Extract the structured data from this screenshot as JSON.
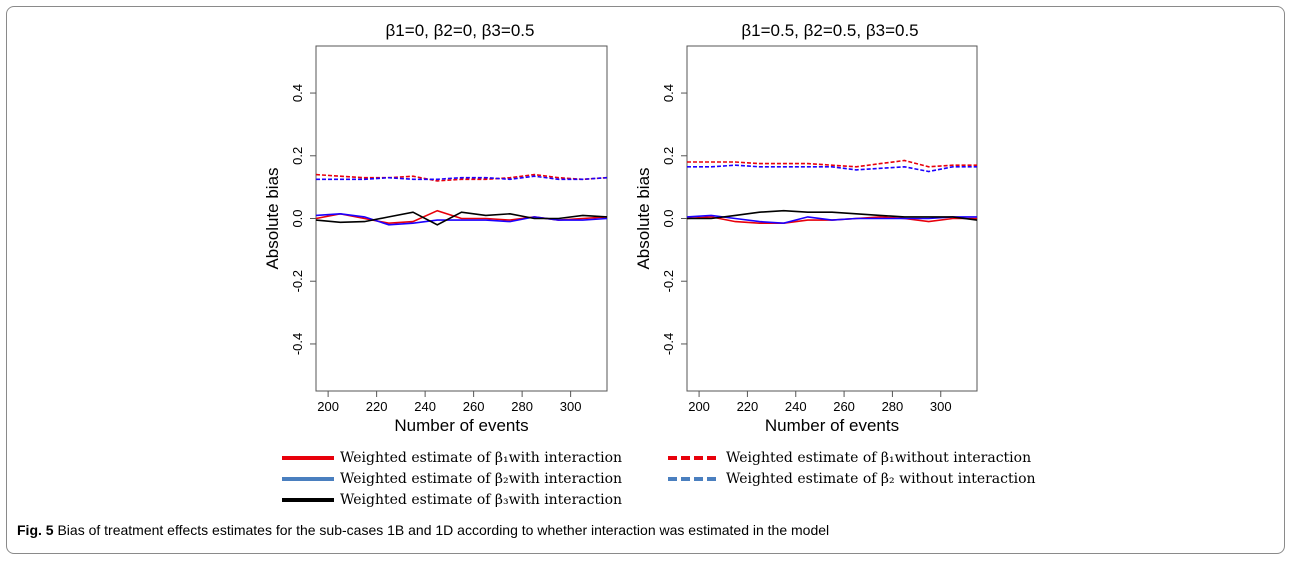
{
  "caption": {
    "label": "Fig. 5",
    "text": "Bias of treatment effects estimates for the sub-cases 1B and 1D according to whether interaction was estimated in the model"
  },
  "legend": [
    {
      "text": "Weighted estimate of β₁with interaction",
      "color": "#e8000b",
      "style": "solid",
      "width": 4
    },
    {
      "text": "Weighted estimate of β₁without interaction",
      "color": "#e8000b",
      "style": "dashed",
      "width": 4
    },
    {
      "text": "Weighted estimate of β₂with interaction",
      "color": "#4a7fbf",
      "style": "solid",
      "width": 4
    },
    {
      "text": "Weighted estimate of β₂ without interaction",
      "color": "#4a7fbf",
      "style": "dashed",
      "width": 4
    },
    {
      "text": "Weighted estimate of β₃with interaction",
      "color": "#000000",
      "style": "solid",
      "width": 4
    }
  ],
  "chart_data": [
    {
      "type": "line",
      "title": "β1=0, β2=0, β3=0.5",
      "xlabel": "Number of events",
      "ylabel": "Absolute bias",
      "xlim": [
        195,
        315
      ],
      "ylim": [
        -0.55,
        0.55
      ],
      "xticks": [
        200,
        220,
        240,
        260,
        280,
        300
      ],
      "yticks": [
        -0.4,
        -0.2,
        0.0,
        0.2,
        0.4
      ],
      "ytick_labels": [
        "-0.4",
        "-0.2",
        "0.0",
        "0.2",
        "0.4"
      ],
      "x": [
        195,
        205,
        215,
        225,
        235,
        245,
        255,
        265,
        275,
        285,
        295,
        305,
        315
      ],
      "series": [
        {
          "color": "#e8000b",
          "dash": false,
          "values": [
            0.0,
            0.015,
            0.0,
            -0.015,
            -0.01,
            0.025,
            0.0,
            0.0,
            -0.005,
            0.005,
            -0.005,
            0.0,
            0.005
          ]
        },
        {
          "color": "#1c00ff",
          "dash": false,
          "values": [
            0.01,
            0.015,
            0.005,
            -0.02,
            -0.015,
            -0.005,
            -0.005,
            -0.005,
            -0.01,
            0.005,
            -0.005,
            -0.005,
            0.0
          ]
        },
        {
          "color": "#000000",
          "dash": false,
          "values": [
            -0.005,
            -0.012,
            -0.01,
            0.005,
            0.02,
            -0.02,
            0.02,
            0.01,
            0.015,
            0.0,
            0.0,
            0.01,
            0.005
          ]
        },
        {
          "color": "#e8000b",
          "dash": true,
          "values": [
            0.14,
            0.135,
            0.13,
            0.13,
            0.135,
            0.12,
            0.125,
            0.125,
            0.13,
            0.14,
            0.13,
            0.125,
            0.13
          ]
        },
        {
          "color": "#1c00ff",
          "dash": true,
          "values": [
            0.125,
            0.125,
            0.125,
            0.13,
            0.125,
            0.125,
            0.13,
            0.13,
            0.125,
            0.135,
            0.125,
            0.125,
            0.13
          ]
        }
      ]
    },
    {
      "type": "line",
      "title": "β1=0.5, β2=0.5, β3=0.5",
      "xlabel": "Number of events",
      "ylabel": "Absolute bias",
      "xlim": [
        195,
        315
      ],
      "ylim": [
        -0.55,
        0.55
      ],
      "xticks": [
        200,
        220,
        240,
        260,
        280,
        300
      ],
      "yticks": [
        -0.4,
        -0.2,
        0.0,
        0.2,
        0.4
      ],
      "ytick_labels": [
        "-0.4",
        "-0.2",
        "0.0",
        "0.2",
        "0.4"
      ],
      "x": [
        195,
        205,
        215,
        225,
        235,
        245,
        255,
        265,
        275,
        285,
        295,
        305,
        315
      ],
      "series": [
        {
          "color": "#e8000b",
          "dash": false,
          "values": [
            0.0,
            0.005,
            -0.01,
            -0.015,
            -0.015,
            -0.005,
            -0.005,
            0.0,
            0.005,
            0.0,
            -0.01,
            0.0,
            0.0
          ]
        },
        {
          "color": "#1c00ff",
          "dash": false,
          "values": [
            0.005,
            0.01,
            0.0,
            -0.01,
            -0.015,
            0.005,
            -0.005,
            0.0,
            0.0,
            0.0,
            0.0,
            0.005,
            0.005
          ]
        },
        {
          "color": "#000000",
          "dash": false,
          "values": [
            0.0,
            0.0,
            0.01,
            0.02,
            0.025,
            0.02,
            0.02,
            0.015,
            0.01,
            0.005,
            0.005,
            0.005,
            -0.005
          ]
        },
        {
          "color": "#e8000b",
          "dash": true,
          "values": [
            0.18,
            0.18,
            0.18,
            0.175,
            0.175,
            0.175,
            0.17,
            0.165,
            0.175,
            0.185,
            0.165,
            0.17,
            0.17
          ]
        },
        {
          "color": "#1c00ff",
          "dash": true,
          "values": [
            0.165,
            0.165,
            0.17,
            0.165,
            0.165,
            0.165,
            0.165,
            0.155,
            0.16,
            0.165,
            0.15,
            0.165,
            0.165
          ]
        }
      ]
    }
  ]
}
